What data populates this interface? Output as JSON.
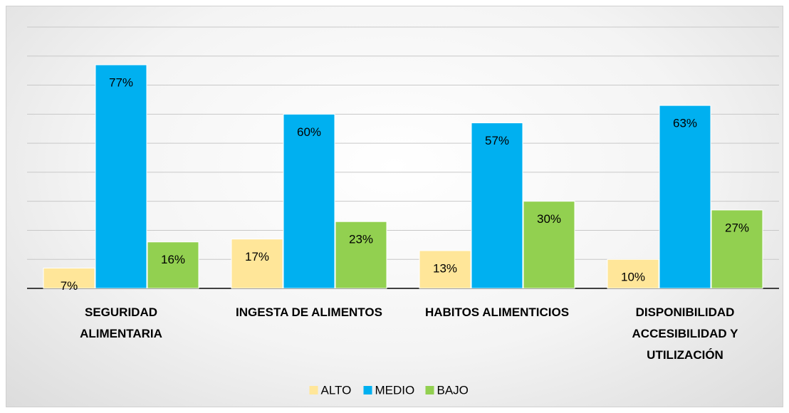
{
  "chart_data": {
    "type": "bar",
    "categories": [
      "SEGURIDAD ALIMENTARIA",
      "INGESTA DE ALIMENTOS",
      "HABITOS ALIMENTICIOS",
      "DISPONIBILIDAD ACCESIBILIDAD Y UTILIZACIÓN"
    ],
    "series": [
      {
        "name": "ALTO",
        "color": "#ffe699",
        "values": [
          7,
          17,
          13,
          10
        ],
        "value_labels": [
          "7%",
          "17%",
          "13%",
          "10%"
        ]
      },
      {
        "name": "MEDIO",
        "color": "#00b0f0",
        "values": [
          77,
          60,
          57,
          63
        ],
        "value_labels": [
          "77%",
          "60%",
          "57%",
          "63%"
        ]
      },
      {
        "name": "BAJO",
        "color": "#92d050",
        "values": [
          16,
          23,
          30,
          27
        ],
        "value_labels": [
          "16%",
          "23%",
          "30%",
          "27%"
        ]
      }
    ],
    "ylim": [
      0,
      90
    ],
    "yticks": [
      0,
      10,
      20,
      30,
      40,
      50,
      60,
      70,
      80,
      90
    ],
    "grid": true,
    "legend": "bottom"
  }
}
